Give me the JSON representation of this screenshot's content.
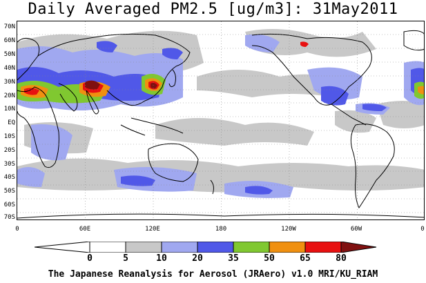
{
  "title": "Daily Averaged PM2.5 [ug/m3]: 31May2011",
  "credit": "The Japanese Reanalysis for Aerosol (JRAero) v1.0 MRI/KU_RIAM",
  "lat_labels": [
    "70N",
    "60N",
    "50N",
    "40N",
    "30N",
    "20N",
    "10N",
    "EQ",
    "10S",
    "20S",
    "30S",
    "40S",
    "50S",
    "60S",
    "70S"
  ],
  "lon_labels": [
    "0",
    "60E",
    "120E",
    "180",
    "120W",
    "60W",
    "0"
  ],
  "colorbar": {
    "labels": [
      "0",
      "5",
      "10",
      "20",
      "35",
      "50",
      "65",
      "80"
    ],
    "colors": [
      "#ffffff",
      "#c8c8c8",
      "#a0a8f0",
      "#5058e8",
      "#80c830",
      "#f09010",
      "#e81010",
      "#801010"
    ]
  },
  "colors": {
    "land_outline": "#000000",
    "grid": "#888888"
  }
}
